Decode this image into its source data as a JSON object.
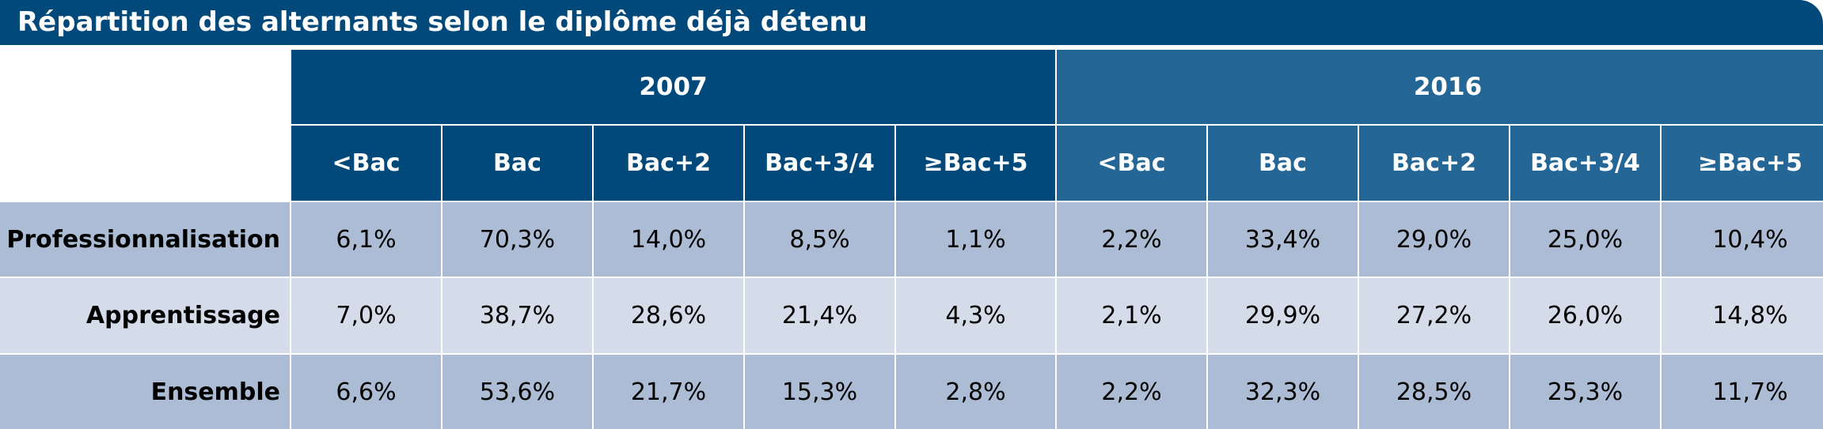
{
  "title": "Répartition des alternants selon le diplôme déjà détenu",
  "years": [
    "2007",
    "2016"
  ],
  "levels": [
    "<Bac",
    "Bac",
    "Bac+2",
    "Bac+3/4",
    "≥Bac+5"
  ],
  "rows": [
    {
      "label": "Professionnalisation",
      "values": [
        "6,1%",
        "70,3%",
        "14,0%",
        "8,5%",
        "1,1%",
        "2,2%",
        "33,4%",
        "29,0%",
        "25,0%",
        "10,4%"
      ]
    },
    {
      "label": "Apprentissage",
      "values": [
        "7,0%",
        "38,7%",
        "28,6%",
        "21,4%",
        "4,3%",
        "2,1%",
        "29,9%",
        "27,2%",
        "26,0%",
        "14,8%"
      ]
    },
    {
      "label": "Ensemble",
      "values": [
        "6,6%",
        "53,6%",
        "21,7%",
        "15,3%",
        "2,8%",
        "2,2%",
        "32,3%",
        "28,5%",
        "25,3%",
        "11,7%"
      ]
    }
  ],
  "colors": {
    "header_2007": "#00497a",
    "header_2016": "#246796",
    "row_dark": "#abbcd4",
    "row_light": "#d4dcea"
  }
}
